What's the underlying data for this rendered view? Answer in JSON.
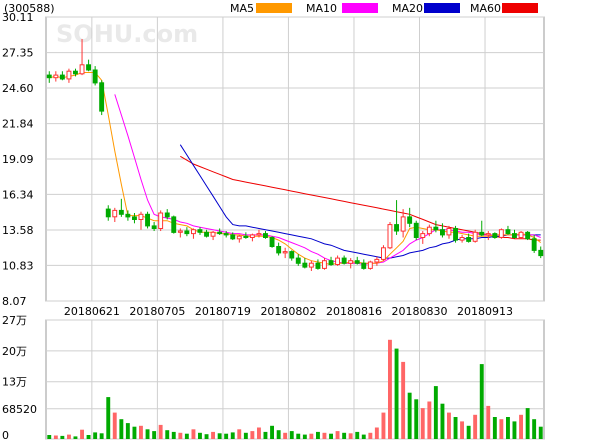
{
  "header": {
    "code": "(300588)",
    "watermark": "SOHU.com"
  },
  "legend": [
    {
      "label": "MA5",
      "color": "#ff9900"
    },
    {
      "label": "MA10",
      "color": "#ff00ff"
    },
    {
      "label": "MA20",
      "color": "#0000cc"
    },
    {
      "label": "MA60",
      "color": "#ee0000"
    }
  ],
  "colors": {
    "up": "#ff3333",
    "down": "#00aa00",
    "vol_up": "#ff6666",
    "vol_down": "#00aa00"
  },
  "chart_data": {
    "type": "candlestick",
    "price_axis": {
      "ticks": [
        30.11,
        27.35,
        24.6,
        21.84,
        19.09,
        16.34,
        13.58,
        10.83,
        8.07
      ],
      "tick_labels": [
        "30.11",
        "27.35",
        "24.60",
        "21.84",
        "19.09",
        "16.34",
        "13.58",
        "10.83",
        "8.07"
      ],
      "min": 8.07,
      "max": 30.11
    },
    "volume_axis": {
      "ticks": [
        270000,
        200000,
        130000,
        68520,
        0
      ],
      "tick_labels": [
        "27万",
        "20万",
        "13万",
        "68520",
        "0"
      ],
      "max": 270000
    },
    "date_labels": [
      {
        "index": 7,
        "label": "20180621"
      },
      {
        "index": 17,
        "label": "20180705"
      },
      {
        "index": 27,
        "label": "20180719"
      },
      {
        "index": 37,
        "label": "20180802"
      },
      {
        "index": 47,
        "label": "20180816"
      },
      {
        "index": 57,
        "label": "20180830"
      },
      {
        "index": 67,
        "label": "20180913"
      }
    ],
    "candles": [
      [
        25.6,
        25.9,
        25.0,
        25.4
      ],
      [
        25.4,
        25.9,
        25.1,
        25.6
      ],
      [
        25.6,
        25.9,
        25.2,
        25.3
      ],
      [
        25.3,
        26.1,
        25.0,
        25.9
      ],
      [
        25.9,
        26.1,
        25.5,
        25.7
      ],
      [
        25.7,
        28.4,
        25.6,
        26.4
      ],
      [
        26.4,
        26.8,
        25.9,
        26.0
      ],
      [
        26.0,
        26.3,
        24.8,
        25.0
      ],
      [
        25.0,
        25.2,
        22.5,
        22.8
      ],
      [
        15.2,
        15.5,
        14.3,
        14.6
      ],
      [
        14.6,
        15.3,
        14.2,
        15.1
      ],
      [
        15.1,
        16.0,
        14.6,
        14.8
      ],
      [
        14.8,
        15.1,
        14.3,
        14.6
      ],
      [
        14.6,
        14.9,
        14.1,
        14.4
      ],
      [
        14.4,
        15.0,
        13.6,
        14.8
      ],
      [
        14.8,
        15.0,
        13.7,
        13.9
      ],
      [
        13.9,
        14.2,
        13.5,
        13.7
      ],
      [
        13.7,
        15.1,
        13.5,
        14.9
      ],
      [
        14.9,
        15.2,
        14.4,
        14.6
      ],
      [
        14.6,
        14.7,
        13.3,
        13.4
      ],
      [
        13.4,
        13.7,
        13.0,
        13.5
      ],
      [
        13.5,
        13.8,
        13.1,
        13.3
      ],
      [
        13.3,
        13.7,
        12.9,
        13.6
      ],
      [
        13.6,
        13.8,
        13.2,
        13.4
      ],
      [
        13.4,
        13.6,
        13.0,
        13.1
      ],
      [
        13.1,
        13.5,
        12.8,
        13.4
      ],
      [
        13.4,
        13.7,
        13.2,
        13.3
      ],
      [
        13.3,
        13.5,
        13.0,
        13.2
      ],
      [
        13.2,
        13.4,
        12.8,
        12.9
      ],
      [
        12.9,
        13.2,
        12.6,
        13.1
      ],
      [
        13.1,
        13.4,
        12.9,
        13.0
      ],
      [
        13.0,
        13.3,
        12.7,
        13.2
      ],
      [
        13.2,
        13.6,
        13.0,
        13.3
      ],
      [
        13.3,
        13.5,
        12.9,
        13.0
      ],
      [
        13.0,
        13.1,
        12.2,
        12.3
      ],
      [
        12.3,
        12.6,
        11.6,
        11.8
      ],
      [
        11.8,
        12.2,
        11.4,
        11.9
      ],
      [
        11.9,
        12.0,
        11.2,
        11.4
      ],
      [
        11.4,
        11.7,
        10.8,
        11.0
      ],
      [
        11.0,
        11.4,
        10.6,
        10.7
      ],
      [
        10.7,
        11.2,
        10.4,
        11.0
      ],
      [
        11.0,
        11.3,
        10.5,
        10.6
      ],
      [
        10.6,
        11.4,
        10.5,
        11.2
      ],
      [
        11.2,
        11.5,
        10.8,
        10.9
      ],
      [
        10.9,
        11.6,
        10.8,
        11.4
      ],
      [
        11.4,
        11.6,
        10.9,
        11.0
      ],
      [
        11.0,
        11.4,
        10.6,
        11.2
      ],
      [
        11.2,
        11.5,
        10.9,
        11.0
      ],
      [
        11.0,
        11.3,
        10.5,
        10.6
      ],
      [
        10.6,
        11.2,
        10.5,
        11.1
      ],
      [
        11.1,
        11.5,
        10.8,
        11.3
      ],
      [
        11.3,
        12.4,
        11.2,
        12.2
      ],
      [
        12.2,
        14.2,
        12.1,
        14.0
      ],
      [
        14.0,
        15.9,
        13.2,
        13.5
      ],
      [
        13.5,
        15.2,
        13.0,
        14.6
      ],
      [
        14.6,
        15.3,
        13.8,
        14.1
      ],
      [
        14.1,
        14.3,
        12.8,
        13.0
      ],
      [
        13.0,
        13.5,
        12.5,
        13.3
      ],
      [
        13.3,
        14.0,
        13.1,
        13.8
      ],
      [
        13.8,
        14.3,
        13.4,
        13.6
      ],
      [
        13.6,
        14.1,
        13.0,
        13.2
      ],
      [
        13.2,
        13.9,
        12.9,
        13.7
      ],
      [
        13.7,
        13.9,
        12.6,
        12.8
      ],
      [
        12.8,
        13.2,
        12.6,
        13.0
      ],
      [
        13.0,
        13.3,
        12.6,
        12.7
      ],
      [
        12.7,
        13.6,
        12.6,
        13.4
      ],
      [
        13.4,
        14.3,
        13.1,
        13.2
      ],
      [
        13.2,
        13.5,
        12.8,
        13.3
      ],
      [
        13.3,
        13.4,
        12.9,
        13.0
      ],
      [
        13.0,
        13.7,
        12.9,
        13.6
      ],
      [
        13.6,
        13.9,
        13.2,
        13.3
      ],
      [
        13.3,
        13.6,
        12.9,
        13.0
      ],
      [
        13.0,
        13.5,
        12.9,
        13.4
      ],
      [
        13.4,
        13.5,
        12.8,
        12.9
      ],
      [
        12.9,
        13.2,
        11.8,
        12.0
      ],
      [
        12.0,
        12.3,
        11.4,
        11.6
      ]
    ],
    "volumes": [
      9000,
      8000,
      7000,
      10000,
      6000,
      21000,
      9000,
      15000,
      13000,
      95000,
      60000,
      45000,
      36000,
      28000,
      30000,
      22000,
      18000,
      32000,
      20000,
      16000,
      14000,
      12000,
      22000,
      14000,
      11000,
      16000,
      13000,
      12000,
      15000,
      22000,
      14000,
      18000,
      26000,
      16000,
      30000,
      20000,
      14000,
      18000,
      12000,
      10000,
      12000,
      16000,
      14000,
      12000,
      18000,
      14000,
      13000,
      16000,
      10000,
      14000,
      26000,
      60000,
      225000,
      205000,
      175000,
      105000,
      90000,
      70000,
      85000,
      120000,
      80000,
      60000,
      50000,
      40000,
      30000,
      55000,
      170000,
      75000,
      50000,
      45000,
      50000,
      40000,
      55000,
      70000,
      45000,
      28000
    ],
    "ma5": [
      25.4,
      25.5,
      25.4,
      25.5,
      25.6,
      25.8,
      25.8,
      25.8,
      25.2,
      22.5,
      19.7,
      17.1,
      14.7,
      14.7,
      14.7,
      14.5,
      14.3,
      14.3,
      14.3,
      14.1,
      14.0,
      13.9,
      13.6,
      13.4,
      13.4,
      13.4,
      13.3,
      13.3,
      13.2,
      13.2,
      13.1,
      13.1,
      13.1,
      13.1,
      13.0,
      12.8,
      12.5,
      12.1,
      11.7,
      11.4,
      11.2,
      11.1,
      11.0,
      10.9,
      11.0,
      11.0,
      11.1,
      11.1,
      11.0,
      11.0,
      11.0,
      11.2,
      11.7,
      12.2,
      12.7,
      13.7,
      13.8,
      13.7,
      13.6,
      13.6,
      13.5,
      13.4,
      13.4,
      13.3,
      13.2,
      13.1,
      13.1,
      13.1,
      13.2,
      13.2,
      13.2,
      13.2,
      13.3,
      13.2,
      13.0,
      12.6
    ],
    "ma10": [
      null,
      null,
      null,
      null,
      null,
      null,
      null,
      null,
      null,
      null,
      24.1,
      22.5,
      20.9,
      19.2,
      17.5,
      15.9,
      14.8,
      14.6,
      14.5,
      14.4,
      14.2,
      14.1,
      13.9,
      13.8,
      13.7,
      13.6,
      13.5,
      13.4,
      13.3,
      13.3,
      13.2,
      13.2,
      13.2,
      13.2,
      13.1,
      13.0,
      12.8,
      12.6,
      12.4,
      12.2,
      11.9,
      11.7,
      11.4,
      11.2,
      11.1,
      11.0,
      11.0,
      11.0,
      10.9,
      11.0,
      11.0,
      11.1,
      11.4,
      11.7,
      12.0,
      12.5,
      12.8,
      13.0,
      13.3,
      13.6,
      13.6,
      13.6,
      13.5,
      13.4,
      13.4,
      13.3,
      13.2,
      13.2,
      13.2,
      13.2,
      13.2,
      13.2,
      13.2,
      13.2,
      13.2,
      13.0
    ],
    "ma20": [
      null,
      null,
      null,
      null,
      null,
      null,
      null,
      null,
      null,
      null,
      null,
      null,
      null,
      null,
      null,
      null,
      null,
      null,
      null,
      null,
      20.2,
      19.4,
      18.6,
      17.8,
      17.0,
      16.2,
      15.4,
      14.6,
      14.0,
      13.9,
      13.9,
      13.8,
      13.7,
      13.6,
      13.5,
      13.4,
      13.3,
      13.2,
      13.1,
      13.0,
      12.9,
      12.7,
      12.5,
      12.4,
      12.2,
      12.0,
      11.9,
      11.8,
      11.7,
      11.6,
      11.5,
      11.4,
      11.4,
      11.5,
      11.6,
      11.8,
      11.9,
      12.0,
      12.2,
      12.3,
      12.5,
      12.6,
      12.8,
      12.9,
      12.9,
      12.9,
      13.0,
      13.0,
      13.1,
      13.1,
      13.2,
      13.2,
      13.2,
      13.2,
      13.2,
      13.2
    ],
    "ma60": [
      null,
      null,
      null,
      null,
      null,
      null,
      null,
      null,
      null,
      null,
      null,
      null,
      null,
      null,
      null,
      null,
      null,
      null,
      null,
      null,
      19.3,
      19.0,
      18.7,
      18.5,
      18.3,
      18.1,
      17.9,
      17.7,
      17.5,
      17.4,
      17.3,
      17.2,
      17.1,
      17.0,
      16.9,
      16.8,
      16.7,
      16.6,
      16.5,
      16.4,
      16.3,
      16.2,
      16.1,
      16.0,
      15.9,
      15.8,
      15.7,
      15.6,
      15.5,
      15.4,
      15.3,
      15.2,
      15.1,
      15.0,
      14.9,
      14.8,
      14.6,
      14.4,
      14.2,
      14.0,
      13.9,
      13.8,
      13.7,
      13.6,
      13.5,
      13.4,
      13.3,
      13.2,
      13.1,
      13.0,
      13.0,
      12.9,
      12.9,
      12.9,
      12.8,
      12.8
    ]
  }
}
